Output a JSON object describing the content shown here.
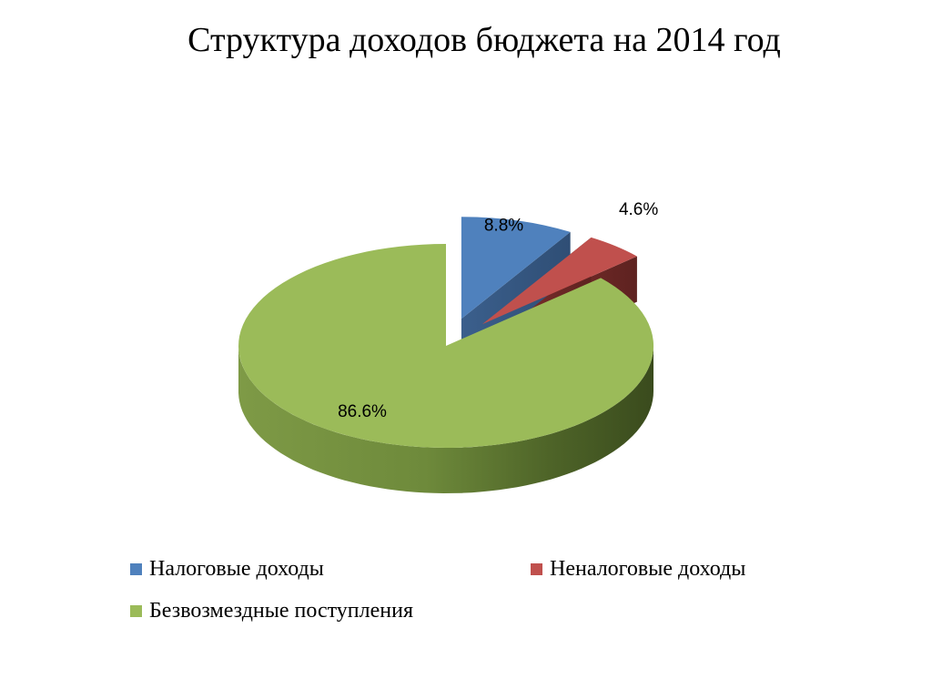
{
  "chart_data": {
    "type": "pie",
    "title": "Структура доходов бюджета на 2014 год",
    "slices": [
      {
        "name": "Налоговые доходы",
        "value": 8.8,
        "label": "8.8%",
        "color": "#4F81BD",
        "exploded": true
      },
      {
        "name": "Неналоговые доходы",
        "value": 4.6,
        "label": "4.6%",
        "color": "#C0504D",
        "exploded": true
      },
      {
        "name": "Безвозмездные поступления",
        "value": 86.6,
        "label": "86.6%",
        "color": "#9BBB59",
        "exploded": false
      }
    ],
    "style": "3d-exploded",
    "legend_position": "bottom"
  }
}
